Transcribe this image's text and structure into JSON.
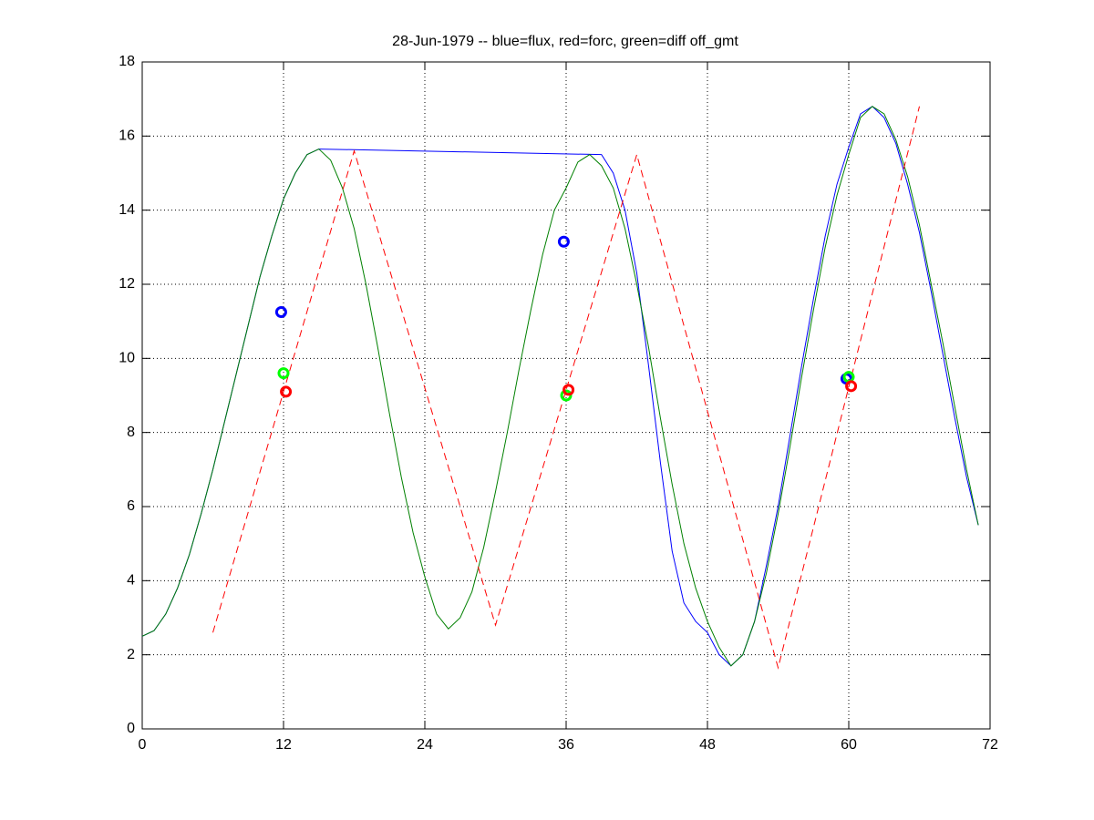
{
  "chart_data": {
    "type": "line",
    "title": "28-Jun-1979 -- blue=flux, red=forc, green=diff off_gmt",
    "xlim": [
      0,
      72
    ],
    "xticks": [
      0,
      12,
      24,
      36,
      48,
      60,
      72
    ],
    "ylim": [
      0,
      18
    ],
    "yticks": [
      0,
      2,
      4,
      6,
      8,
      10,
      12,
      14,
      16,
      18
    ],
    "grid": true,
    "series": [
      {
        "mode": "line",
        "color": "#0000ff",
        "dash": false,
        "x": [
          0,
          1,
          2,
          3,
          4,
          5,
          6,
          7,
          8,
          9,
          10,
          11,
          12,
          13,
          14,
          15,
          39,
          40,
          41,
          42,
          43,
          44,
          45,
          46,
          47,
          48,
          49,
          50,
          51,
          52,
          53,
          54,
          55,
          56,
          57,
          58,
          59,
          60,
          61,
          62,
          63,
          64,
          65,
          66,
          67,
          68,
          69,
          70,
          71
        ],
        "values": [
          2.5,
          2.65,
          3.1,
          3.8,
          4.7,
          5.8,
          7.0,
          8.3,
          9.6,
          10.9,
          12.2,
          13.3,
          14.3,
          15.0,
          15.5,
          15.65,
          15.5,
          15.0,
          14.0,
          12.3,
          9.8,
          7.2,
          4.8,
          3.4,
          2.9,
          2.6,
          2.0,
          1.7,
          2.0,
          2.9,
          4.4,
          6.0,
          7.9,
          9.8,
          11.6,
          13.3,
          14.7,
          15.7,
          16.6,
          16.8,
          16.5,
          15.8,
          14.7,
          13.4,
          11.8,
          10.1,
          8.4,
          6.8,
          5.5
        ]
      },
      {
        "mode": "line",
        "color": "#008000",
        "dash": false,
        "x": [
          0,
          1,
          2,
          3,
          4,
          5,
          6,
          7,
          8,
          9,
          10,
          11,
          12,
          13,
          14,
          15,
          16,
          17,
          18,
          19,
          20,
          21,
          22,
          23,
          24,
          25,
          26,
          27,
          28,
          29,
          30,
          31,
          32,
          33,
          34,
          35,
          36,
          37,
          38,
          39,
          40,
          41,
          42,
          43,
          44,
          45,
          46,
          47,
          48,
          49,
          50,
          51,
          52,
          53,
          54,
          55,
          56,
          57,
          58,
          59,
          60,
          61,
          62,
          63,
          64,
          65,
          66,
          67,
          68,
          69,
          70,
          71
        ],
        "values": [
          2.5,
          2.65,
          3.1,
          3.8,
          4.7,
          5.8,
          7.0,
          8.3,
          9.6,
          10.9,
          12.2,
          13.3,
          14.3,
          15.0,
          15.5,
          15.65,
          15.35,
          14.6,
          13.5,
          12.0,
          10.3,
          8.5,
          6.8,
          5.3,
          4.1,
          3.1,
          2.7,
          3.0,
          3.7,
          4.9,
          6.4,
          8.0,
          9.7,
          11.3,
          12.8,
          14.0,
          14.6,
          15.3,
          15.5,
          15.2,
          14.6,
          13.5,
          12.0,
          10.3,
          8.4,
          6.6,
          5.0,
          3.8,
          2.9,
          2.2,
          1.7,
          2.0,
          2.9,
          4.2,
          5.8,
          7.6,
          9.5,
          11.3,
          13.0,
          14.4,
          15.5,
          16.5,
          16.8,
          16.6,
          15.9,
          14.9,
          13.6,
          12.0,
          10.4,
          8.7,
          7.0,
          5.5
        ]
      },
      {
        "mode": "line",
        "color": "#ff0000",
        "dash": true,
        "x": [
          6,
          18,
          30,
          42,
          54,
          66
        ],
        "values": [
          2.6,
          15.6,
          2.8,
          15.5,
          1.65,
          16.8
        ]
      },
      {
        "mode": "markers",
        "color": "#0000ff",
        "x": [
          11.8,
          35.8,
          59.8
        ],
        "values": [
          11.25,
          13.15,
          9.45
        ]
      },
      {
        "mode": "markers",
        "color": "#00ff00",
        "x": [
          12,
          36,
          60
        ],
        "values": [
          9.6,
          9.0,
          9.5
        ]
      },
      {
        "mode": "markers",
        "color": "#ff0000",
        "x": [
          12.2,
          36.2,
          60.2
        ],
        "values": [
          9.1,
          9.15,
          9.25
        ]
      }
    ]
  }
}
